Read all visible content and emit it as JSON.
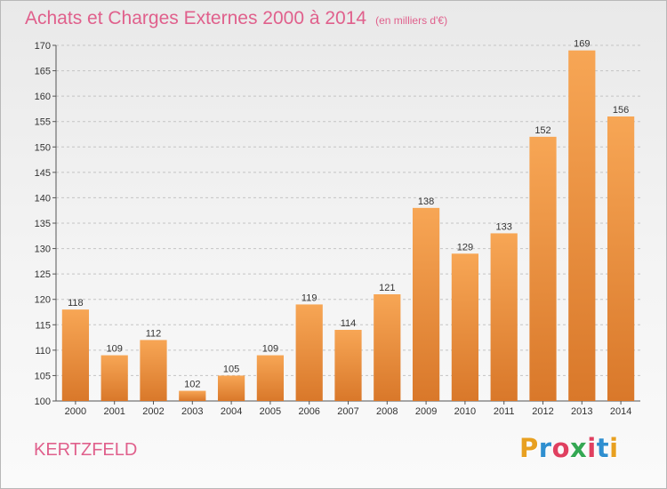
{
  "header": {
    "title": "Achats et Charges Externes 2000 à 2014",
    "unit": "(en milliers d'€)"
  },
  "footer": {
    "commune": "KERTZFELD",
    "brand": "Proxiti",
    "brand_colors": [
      "#e8a020",
      "#2f8fd0",
      "#e04060",
      "#34a853",
      "#e04060",
      "#2f8fd0",
      "#e8a020"
    ]
  },
  "colors": {
    "accent": "#e0608c",
    "bar_light": "#f7a655",
    "bar_dark": "#d9782a"
  },
  "chart_data": {
    "type": "bar",
    "title": "Achats et Charges Externes 2000 à 2014",
    "subtitle": "(en milliers d'€)",
    "categories": [
      "2000",
      "2001",
      "2002",
      "2003",
      "2004",
      "2005",
      "2006",
      "2007",
      "2008",
      "2009",
      "2010",
      "2011",
      "2012",
      "2013",
      "2014"
    ],
    "values": [
      118,
      109,
      112,
      102,
      105,
      109,
      119,
      114,
      121,
      138,
      129,
      133,
      152,
      169,
      156
    ],
    "ylim": [
      100,
      170
    ],
    "yticks": [
      100,
      105,
      110,
      115,
      120,
      125,
      130,
      135,
      140,
      145,
      150,
      155,
      160,
      165,
      170
    ],
    "grid": true,
    "data_labels": true
  }
}
